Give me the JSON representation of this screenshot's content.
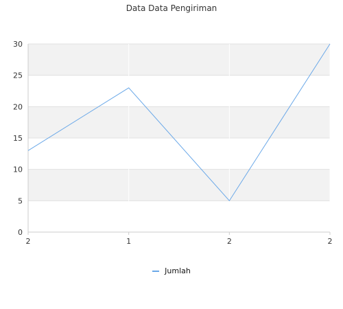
{
  "chart_data": {
    "type": "line",
    "title": "Data Data Pengiriman",
    "categories": [
      "2",
      "1",
      "2",
      "2"
    ],
    "series": [
      {
        "name": "Jumlah",
        "values": [
          13,
          23,
          5,
          30
        ],
        "color": "#6aa8e8"
      }
    ],
    "yticks": [
      0,
      5,
      10,
      15,
      20,
      25,
      30
    ],
    "ylim": [
      0,
      30
    ],
    "grid": "horizontal-bands",
    "legend_position": "bottom-center"
  },
  "colors": {
    "band": "#f2f2f2",
    "gridline": "#e0e0e0",
    "axis": "#cccccc",
    "tick_text": "#333333"
  }
}
